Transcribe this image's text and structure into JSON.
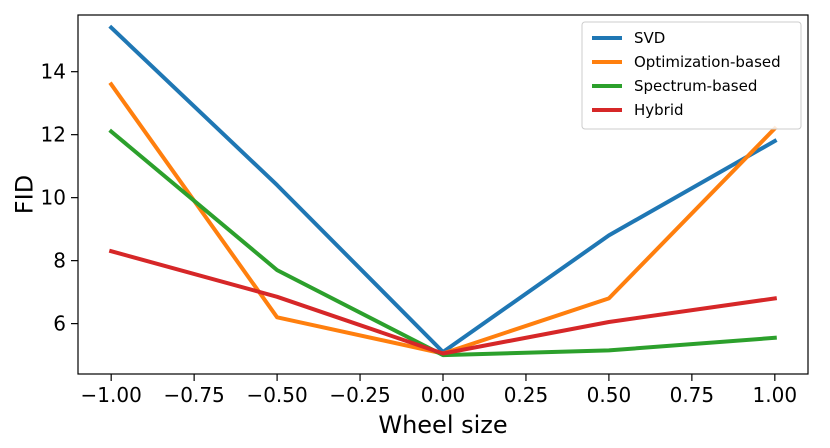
{
  "chart_data": {
    "type": "line",
    "title": "",
    "xlabel": "Wheel size",
    "ylabel": "FID",
    "x": [
      -1.0,
      -0.5,
      0.0,
      0.5,
      1.0
    ],
    "xlim": [
      -1.1,
      1.1
    ],
    "ylim": [
      4.4,
      15.8
    ],
    "xticks": [
      -1.0,
      -0.75,
      -0.5,
      -0.25,
      0.0,
      0.25,
      0.5,
      0.75,
      1.0
    ],
    "xtick_labels": [
      "−1.00",
      "−0.75",
      "−0.50",
      "−0.25",
      "0.00",
      "0.25",
      "0.50",
      "0.75",
      "1.00"
    ],
    "yticks": [
      6,
      8,
      10,
      12,
      14
    ],
    "ytick_labels": [
      "6",
      "8",
      "10",
      "12",
      "14"
    ],
    "grid": false,
    "legend_position": "top-right",
    "series": [
      {
        "name": "SVD",
        "color": "#1f77b4",
        "values": [
          15.4,
          10.4,
          5.1,
          8.8,
          11.8
        ]
      },
      {
        "name": "Optimization-based",
        "color": "#ff7f0e",
        "values": [
          13.6,
          6.2,
          5.05,
          6.8,
          12.2
        ]
      },
      {
        "name": "Spectrum-based",
        "color": "#2ca02c",
        "values": [
          12.1,
          7.7,
          5.0,
          5.15,
          5.55
        ]
      },
      {
        "name": "Hybrid",
        "color": "#d62728",
        "values": [
          8.3,
          6.85,
          5.05,
          6.05,
          6.8
        ]
      }
    ]
  }
}
